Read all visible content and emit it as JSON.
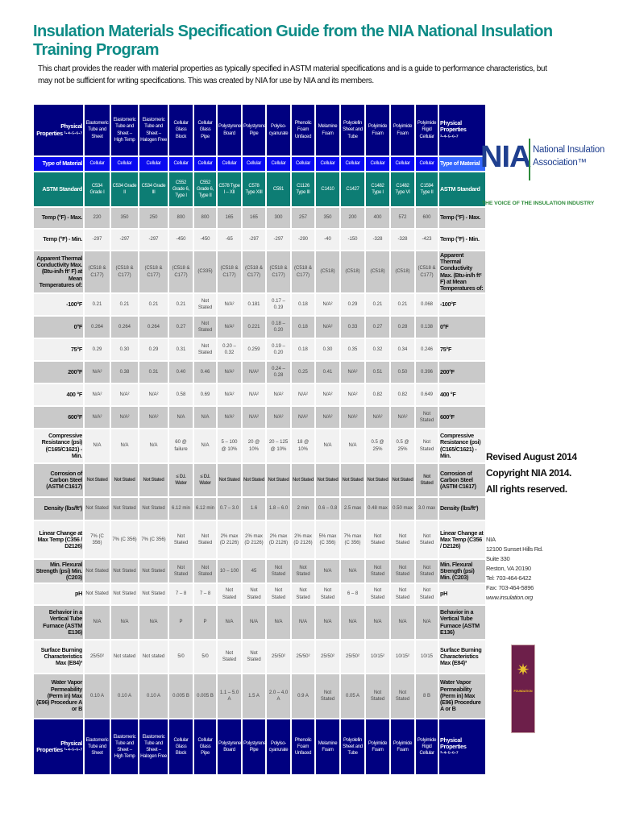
{
  "title": "Insulation Materials Specification Guide from the NIA National Insulation Training Program",
  "intro": "This chart provides the reader with material properties as typically specified in ASTM material specifications and is a guide to performance characteristics, but may not be sufficient for writing specifications. This was created by NIA for use by NIA and its members.",
  "header": {
    "label": "Physical Properties ¹·⁴·⁵·⁶·⁷",
    "columns": [
      "Elastomeric Tube and Sheet",
      "Elastomeric Tube and Sheet – High Temp",
      "Elastomeric Tube and Sheet – Halogen Free",
      "Cellular Glass Block",
      "Cellular Glass Pipe",
      "Polystyrene Board",
      "Polystyrene Pipe",
      "Polyiso-cyanurate",
      "Phenolic Foam Unfaced",
      "Melamine Foam",
      "Polyolefin Sheet and Tube",
      "Polyimide Foam",
      "Polyimide Foam",
      "Polyimide Rigid Cellular"
    ]
  },
  "rows": [
    {
      "label": "Type of Material",
      "cls": "tm",
      "values": [
        "Cellular",
        "Cellular",
        "Cellular",
        "Cellular",
        "Cellular",
        "Cellular",
        "Cellular",
        "Cellular",
        "Cellular",
        "Cellular",
        "Cellular",
        "Cellular",
        "Cellular",
        "Cellular"
      ]
    },
    {
      "label": "ASTM Standard",
      "cls": "as",
      "values": [
        "C534 Grade I",
        "C534 Grade II",
        "C534 Grade III",
        "C552 Grade 6, Type I",
        "C552 Grade 6, Type II",
        "C578 Type I – XII",
        "C578 Type XIII",
        "C591",
        "C1126 Type III",
        "C1410",
        "C1427",
        "C1482 Type I",
        "C1482 Type VI",
        "C1594 Type II"
      ]
    },
    {
      "label": "Temp (°F) - Max.",
      "cls": "g",
      "values": [
        "220",
        "350",
        "250",
        "800",
        "800",
        "165",
        "165",
        "300",
        "257",
        "350",
        "200",
        "400",
        "572",
        "600"
      ]
    },
    {
      "label": "Temp (°F) - Min.",
      "cls": "l",
      "values": [
        "-297",
        "-297",
        "-297",
        "-450",
        "-450",
        "-65",
        "-297",
        "-297",
        "-290",
        "-40",
        "-150",
        "-328",
        "-328",
        "-423"
      ]
    },
    {
      "label": "Apparent Thermal Conductivity Max. (Btu-in/h ft² F) at Mean Temperatures of:",
      "cls": "g",
      "values": [
        "(C518 & C177)",
        "(C518 & C177)",
        "(C518 & C177)",
        "(C518 & C177)",
        "(C335)",
        "(C518 & C177)",
        "(C518 & C177)",
        "(C518 & C177)",
        "(C518 & C177)",
        "(C518)",
        "(C518)",
        "(C518)",
        "(C518)",
        "(C518 & C177)"
      ]
    },
    {
      "label": "-100°F",
      "cls": "l",
      "values": [
        "0.21",
        "0.21",
        "0.21",
        "0.21",
        "Not Stated",
        "N/A²",
        "0.181",
        "0.17 – 0.19",
        "0.18",
        "N/A²",
        "0.29",
        "0.21",
        "0.21",
        "0.068"
      ]
    },
    {
      "label": "0°F",
      "cls": "g",
      "values": [
        "0.264",
        "0.264",
        "0.264",
        "0.27",
        "Not Stated",
        "N/A²",
        "0.221",
        "0.18 – 0.20",
        "0.18",
        "N/A²",
        "0.33",
        "0.27",
        "0.28",
        "0.138"
      ]
    },
    {
      "label": "75°F",
      "cls": "l",
      "values": [
        "0.29",
        "0.30",
        "0.29",
        "0.31",
        "Not Stated",
        "0.20 – 0.32",
        "0.259",
        "0.19 – 0.20",
        "0.18",
        "0.30",
        "0.35",
        "0.32",
        "0.34",
        "0.246"
      ]
    },
    {
      "label": "200°F",
      "cls": "g",
      "values": [
        "N/A²",
        "0.38",
        "0.31",
        "0.40",
        "0.46",
        "N/A²",
        "N/A²",
        "0.24 – 0.28",
        "0.25",
        "0.41",
        "N/A²",
        "0.51",
        "0.50",
        "0.396"
      ]
    },
    {
      "label": "400 °F",
      "cls": "l",
      "values": [
        "N/A²",
        "N/A²",
        "N/A²",
        "0.58",
        "0.69",
        "N/A²",
        "N/A²",
        "N/A²",
        "N/A²",
        "N/A²",
        "N/A²",
        "0.82",
        "0.82",
        "0.649"
      ]
    },
    {
      "label": "600°F",
      "cls": "g",
      "values": [
        "N/A²",
        "N/A²",
        "N/A²",
        "N/A",
        "N/A",
        "N/A²",
        "N/A²",
        "N/A²",
        "N/A²",
        "N/A²",
        "N/A²",
        "N/A²",
        "N/A²",
        "Not Stated"
      ]
    },
    {
      "label": "Compressive Resistance (psi) (C165/C1621) - Min.",
      "cls": "l",
      "values": [
        "N/A",
        "N/A",
        "N/A",
        "60 @ failure",
        "N/A",
        "5 – 100 @ 10%",
        "20 @ 10%",
        "20 – 125 @ 10%",
        "18 @ 10%",
        "N/A",
        "N/A",
        "0.5 @ 25%",
        "0.5 @ 25%",
        "Not Stated"
      ]
    },
    {
      "label": "Corrosion of Carbon Steel (ASTM C1617)",
      "cls": "g cor",
      "values": [
        "Not Stated",
        "Not Stated",
        "Not Stated",
        "≤ D.I. Water",
        "≤ D.I. Water",
        "Not Stated",
        "Not Stated",
        "Not Stated",
        "Not Stated",
        "Not Stated",
        "Not Stated",
        "Not Stated",
        "Not Stated",
        "Not Stated"
      ]
    },
    {
      "label": "Density (lbs/ft³)",
      "cls": "g",
      "values": [
        "Not Stated",
        "Not Stated",
        "Not Stated",
        "6.12 min",
        "6.12 min",
        "0.7 – 3.0",
        "1.6",
        "1.8 – 6.0",
        "2 min",
        "0.6 – 0.8",
        "2.5 max",
        "0.48 max",
        "0.50 max",
        "3.0 max"
      ]
    },
    {
      "label": "Linear Change at Max Temp (C356 / D2126)",
      "cls": "l",
      "values": [
        "7% (C 356)",
        "7% (C 356)",
        "7% (C 356)",
        "Not Stated",
        "Not Stated",
        "2% max (D 2126)",
        "2% max (D 2126)",
        "2% max (D 2126)",
        "2% max (D 2126)",
        "5% max (C 356)",
        "7% max (C 356)",
        "Not Stated",
        "Not Stated",
        "Not Stated"
      ]
    },
    {
      "label": "Min. Flexural Strength (psi) Min. (C203)",
      "cls": "g",
      "values": [
        "Not Stated",
        "Not Stated",
        "Not Stated",
        "Not Stated",
        "Not Stated",
        "10 – 100",
        "45",
        "Not Stated",
        "Not Stated",
        "N/A",
        "N/A",
        "Not Stated",
        "Not Stated",
        "Not Stated"
      ]
    },
    {
      "label": "pH",
      "cls": "l",
      "values": [
        "Not Stated",
        "Not Stated",
        "Not Stated",
        "7 – 8",
        "7 – 8",
        "Not Stated",
        "Not Stated",
        "Not Stated",
        "Not Stated",
        "Not Stated",
        "6 – 8",
        "Not Stated",
        "Not Stated",
        "Not Stated"
      ]
    },
    {
      "label": "Behavior in a Vertical Tube Furnace (ASTM E136)",
      "cls": "g",
      "values": [
        "N/A",
        "N/A",
        "N/A",
        "P",
        "P",
        "N/A",
        "N/A",
        "N/A",
        "N/A",
        "N/A",
        "N/A",
        "N/A",
        "N/A",
        "N/A"
      ]
    },
    {
      "label": "Surface Burning Characteristics Max (E84)³",
      "cls": "l",
      "values": [
        "25/50²",
        "Not stated",
        "Not stated",
        "5/0",
        "5/0",
        "Not Stated",
        "Not Stated",
        "25/50²",
        "25/50²",
        "25/50²",
        "25/50²",
        "10/15²",
        "10/15²",
        "10/15"
      ]
    },
    {
      "label": "Water Vapor Permeability (Perm in) Max (E96) Procedure A or B",
      "cls": "g",
      "values": [
        "0.10 A",
        "0.10 A",
        "0.10 A",
        "0.005 B",
        "0.005 B",
        "1.1 – 5.0 A",
        "1.5 A",
        "2.0 – 4.0 A",
        "0.9 A",
        "Not Stated",
        "0.05 A",
        "Not Stated",
        "Not Stated",
        "8 B"
      ]
    }
  ],
  "side": {
    "logo_letters": "NIA",
    "logo_name": "National Insulation Association™",
    "tagline": "The Voice of the Insulation Industry",
    "revised": "Revised August 2014",
    "copyright": "Copyright NIA 2014.",
    "rights": "All rights reserved.",
    "address": [
      "NIA",
      "12100 Sunset Hills Rd.",
      "Suite 330",
      "Reston, VA 20190",
      "Tel: 703-464-6422",
      "Fax: 703-464-5896",
      "www.insulation.org"
    ],
    "foundation_label": "FOUNDATION"
  },
  "colors": {
    "title": "#0d8b86",
    "header": "#000080",
    "type_row": "#0a0af0",
    "astm_row": "#0d7d74",
    "nia_blue": "#1f3f8f",
    "nia_green": "#2e8b3a"
  }
}
